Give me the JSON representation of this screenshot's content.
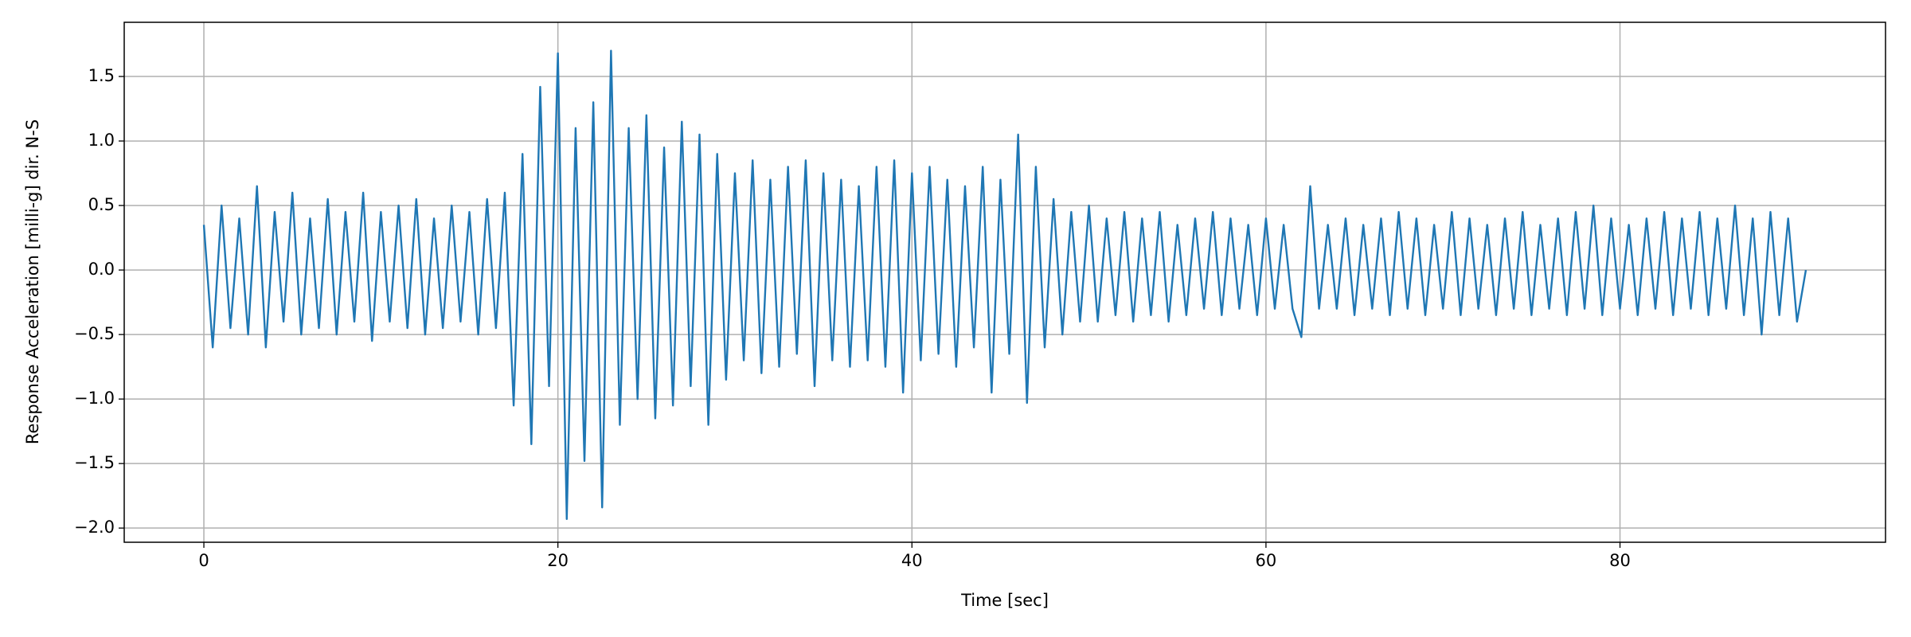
{
  "chart_data": {
    "type": "line",
    "x_label": "Time [sec]",
    "y_label": "Response Acceleration [milli-g] dir. N-S",
    "xlim": [
      -4.5,
      95
    ],
    "ylim": [
      -2.11,
      1.92
    ],
    "xticks": [
      0,
      20,
      40,
      60,
      80
    ],
    "yticks": [
      {
        "value": -2,
        "label": "−2.0"
      },
      {
        "value": -1.5,
        "label": "−1.5"
      },
      {
        "value": -1,
        "label": "−1.0"
      },
      {
        "value": -0.5,
        "label": "−0.5"
      },
      {
        "value": 0,
        "label": "0.0"
      },
      0.5,
      {
        "value": 1,
        "label": "1.0"
      },
      1.5
    ],
    "grid": true,
    "x": [
      0,
      0.5,
      1,
      1.5,
      2,
      2.5,
      3,
      3.5,
      4,
      4.5,
      5,
      5.5,
      6,
      6.5,
      7,
      7.5,
      8,
      8.5,
      9,
      9.5,
      10,
      10.5,
      11,
      11.5,
      12,
      12.5,
      13,
      13.5,
      14,
      14.5,
      15,
      15.5,
      16,
      16.5,
      17,
      17.5,
      18,
      18.5,
      19,
      19.5,
      20,
      20.5,
      21,
      21.5,
      22,
      22.5,
      23,
      23.5,
      24,
      24.5,
      25,
      25.5,
      26,
      26.5,
      27,
      27.5,
      28,
      28.5,
      29,
      29.5,
      30,
      30.5,
      31,
      31.5,
      32,
      32.5,
      33,
      33.5,
      34,
      34.5,
      35,
      35.5,
      36,
      36.5,
      37,
      37.5,
      38,
      38.5,
      39,
      39.5,
      40,
      40.5,
      41,
      41.5,
      42,
      42.5,
      43,
      43.5,
      44,
      44.5,
      45,
      45.5,
      46,
      46.5,
      47,
      47.5,
      48,
      48.5,
      49,
      49.5,
      50,
      50.5,
      51,
      51.5,
      52,
      52.5,
      53,
      53.5,
      54,
      54.5,
      55,
      55.5,
      56,
      56.5,
      57,
      57.5,
      58,
      58.5,
      59,
      59.5,
      60,
      60.5,
      61,
      61.5,
      62,
      62.5,
      63,
      63.5,
      64,
      64.5,
      65,
      65.5,
      66,
      66.5,
      67,
      67.5,
      68,
      68.5,
      69,
      69.5,
      70,
      70.5,
      71,
      71.5,
      72,
      72.5,
      73,
      73.5,
      74,
      74.5,
      75,
      75.5,
      76,
      76.5,
      77,
      77.5,
      78,
      78.5,
      79,
      79.5,
      80,
      80.5,
      81,
      81.5,
      82,
      82.5,
      83,
      83.5,
      84,
      84.5,
      85,
      85.5,
      86,
      86.5,
      87,
      87.5,
      88,
      88.5,
      89,
      89.5,
      90,
      90.5
    ],
    "series": [
      {
        "color": "#1f77b4",
        "values": [
          0.35,
          -0.6,
          0.5,
          -0.45,
          0.4,
          -0.5,
          0.65,
          -0.6,
          0.45,
          -0.4,
          0.6,
          -0.5,
          0.4,
          -0.45,
          0.55,
          -0.5,
          0.45,
          -0.4,
          0.6,
          -0.55,
          0.45,
          -0.4,
          0.5,
          -0.45,
          0.55,
          -0.5,
          0.4,
          -0.45,
          0.5,
          -0.4,
          0.45,
          -0.5,
          0.55,
          -0.45,
          0.6,
          -1.05,
          0.9,
          -1.35,
          1.42,
          -0.9,
          1.68,
          -1.93,
          1.1,
          -1.48,
          1.3,
          -1.84,
          1.7,
          -1.2,
          1.1,
          -1.0,
          1.2,
          -1.15,
          0.95,
          -1.05,
          1.15,
          -0.9,
          1.05,
          -1.2,
          0.9,
          -0.85,
          0.75,
          -0.7,
          0.85,
          -0.8,
          0.7,
          -0.75,
          0.8,
          -0.65,
          0.85,
          -0.9,
          0.75,
          -0.7,
          0.7,
          -0.75,
          0.65,
          -0.7,
          0.8,
          -0.75,
          0.85,
          -0.95,
          0.75,
          -0.7,
          0.8,
          -0.65,
          0.7,
          -0.75,
          0.65,
          -0.6,
          0.8,
          -0.95,
          0.7,
          -0.65,
          1.05,
          -1.03,
          0.8,
          -0.6,
          0.55,
          -0.5,
          0.45,
          -0.4,
          0.5,
          -0.4,
          0.4,
          -0.35,
          0.45,
          -0.4,
          0.4,
          -0.35,
          0.45,
          -0.4,
          0.35,
          -0.35,
          0.4,
          -0.3,
          0.45,
          -0.35,
          0.4,
          -0.3,
          0.35,
          -0.35,
          0.4,
          -0.3,
          0.35,
          -0.3,
          -0.52,
          0.65,
          -0.3,
          0.35,
          -0.3,
          0.4,
          -0.35,
          0.35,
          -0.3,
          0.4,
          -0.35,
          0.45,
          -0.3,
          0.4,
          -0.35,
          0.35,
          -0.3,
          0.45,
          -0.35,
          0.4,
          -0.3,
          0.35,
          -0.35,
          0.4,
          -0.3,
          0.45,
          -0.35,
          0.35,
          -0.3,
          0.4,
          -0.35,
          0.45,
          -0.3,
          0.5,
          -0.35,
          0.4,
          -0.3,
          0.35,
          -0.35,
          0.4,
          -0.3,
          0.45,
          -0.35,
          0.4,
          -0.3,
          0.45,
          -0.35,
          0.4,
          -0.3,
          0.5,
          -0.35,
          0.4,
          -0.5,
          0.45,
          -0.35,
          0.4,
          -0.4,
          0.0
        ]
      }
    ]
  }
}
